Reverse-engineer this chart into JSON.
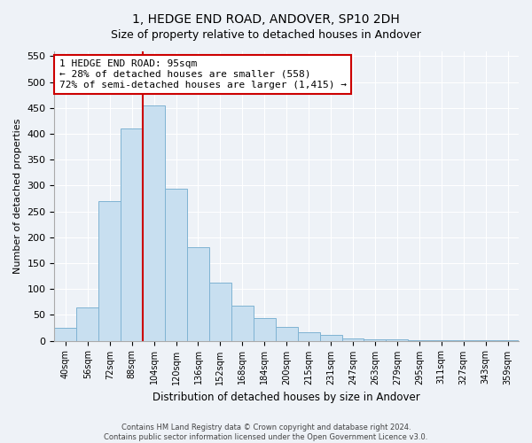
{
  "title": "1, HEDGE END ROAD, ANDOVER, SP10 2DH",
  "subtitle": "Size of property relative to detached houses in Andover",
  "xlabel": "Distribution of detached houses by size in Andover",
  "ylabel": "Number of detached properties",
  "bar_labels": [
    "40sqm",
    "56sqm",
    "72sqm",
    "88sqm",
    "104sqm",
    "120sqm",
    "136sqm",
    "152sqm",
    "168sqm",
    "184sqm",
    "200sqm",
    "215sqm",
    "231sqm",
    "247sqm",
    "263sqm",
    "279sqm",
    "295sqm",
    "311sqm",
    "327sqm",
    "343sqm",
    "359sqm"
  ],
  "bar_heights": [
    25,
    65,
    270,
    410,
    455,
    293,
    180,
    113,
    67,
    43,
    27,
    17,
    12,
    5,
    3,
    2,
    1,
    1,
    1,
    1,
    1
  ],
  "bar_color": "#c8dff0",
  "bar_edge_color": "#7fb3d3",
  "vline_color": "#cc0000",
  "annotation_title": "1 HEDGE END ROAD: 95sqm",
  "annotation_line1": "← 28% of detached houses are smaller (558)",
  "annotation_line2": "72% of semi-detached houses are larger (1,415) →",
  "annotation_box_facecolor": "white",
  "annotation_box_edgecolor": "#cc0000",
  "ylim": [
    0,
    560
  ],
  "yticks": [
    0,
    50,
    100,
    150,
    200,
    250,
    300,
    350,
    400,
    450,
    500,
    550
  ],
  "footer_line1": "Contains HM Land Registry data © Crown copyright and database right 2024.",
  "footer_line2": "Contains public sector information licensed under the Open Government Licence v3.0.",
  "background_color": "#eef2f7",
  "grid_color": "white",
  "title_fontsize": 10,
  "subtitle_fontsize": 9
}
